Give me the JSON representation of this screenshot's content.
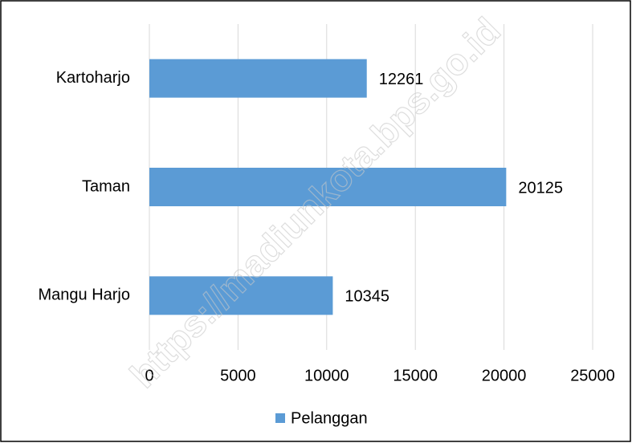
{
  "chart_data": {
    "type": "bar",
    "orientation": "horizontal",
    "categories": [
      "Kartoharjo",
      "Taman",
      "Mangu Harjo"
    ],
    "series": [
      {
        "name": "Pelanggan",
        "color": "#5b9bd5",
        "values": [
          12261,
          20125,
          10345
        ]
      }
    ],
    "xlim": [
      0,
      25000
    ],
    "xticks": [
      0,
      5000,
      10000,
      15000,
      20000,
      25000
    ],
    "grid": true,
    "legend": "bottom",
    "watermark": "https://madiunkota.bps.go.id"
  }
}
